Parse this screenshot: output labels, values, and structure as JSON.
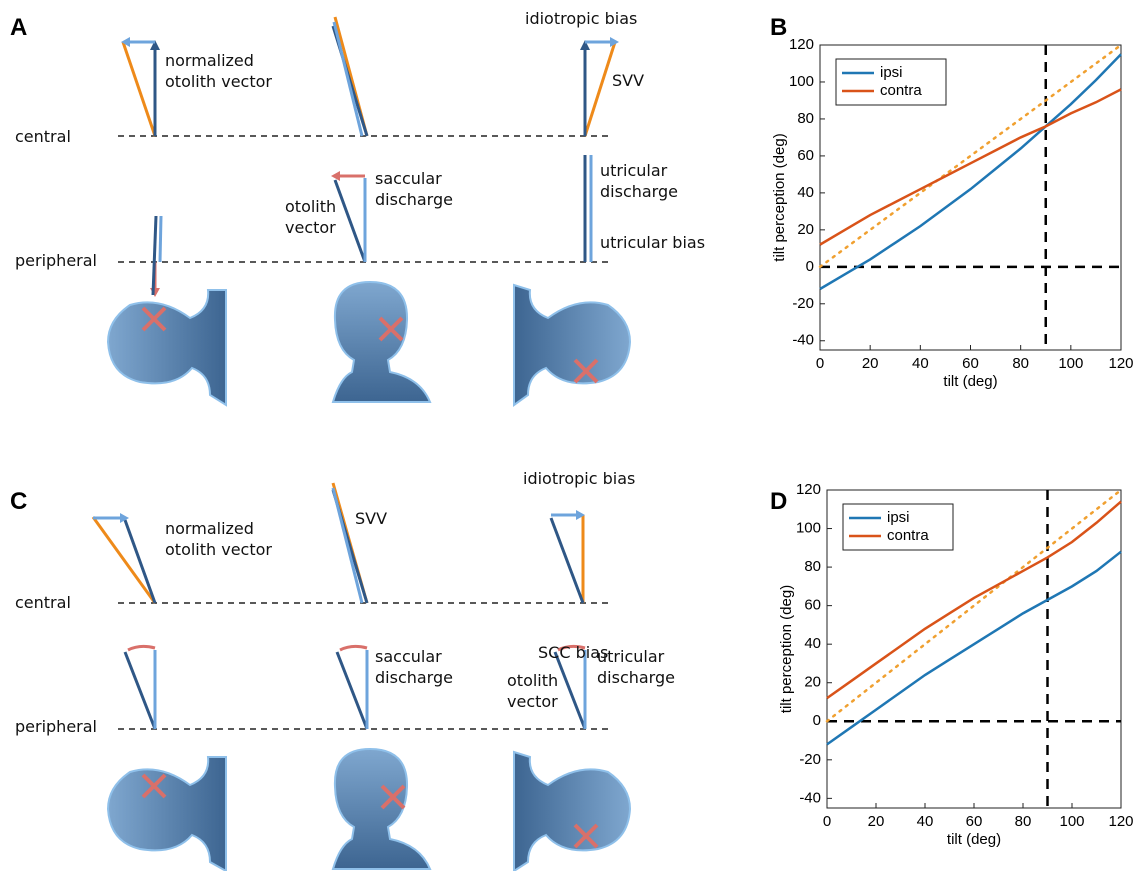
{
  "panel_labels": [
    "A",
    "B",
    "C",
    "D"
  ],
  "diagrams": [
    {
      "labels": [
        "central",
        "peripheral",
        "normalized\notolith vector",
        "idiotropic bias",
        "SVV",
        "saccular\ndischarge",
        "otolith\nvector",
        "utricular\ndischarge",
        "utricular bias"
      ]
    },
    {
      "labels": [
        "central",
        "peripheral",
        "normalized\notolith vector",
        "SVV",
        "idiotropic bias",
        "saccular\ndischarge",
        "SCC bias",
        "utricular\ndischarge",
        "otolith\nvector"
      ]
    }
  ],
  "chart_data": [
    {
      "type": "line",
      "xlabel": "tilt (deg)",
      "ylabel": "tilt perception (deg)",
      "x": [
        0,
        10,
        20,
        30,
        40,
        50,
        60,
        70,
        80,
        90,
        100,
        110,
        120
      ],
      "series": [
        {
          "name": "ipsi",
          "color": "#1f77b4",
          "values": [
            -12,
            -4,
            4,
            13,
            22,
            32,
            42,
            53,
            64,
            76,
            88,
            101,
            115
          ]
        },
        {
          "name": "contra",
          "color": "#d95319",
          "values": [
            12,
            20,
            28,
            35,
            42,
            49,
            56,
            63,
            70,
            76,
            83,
            89,
            96
          ]
        }
      ],
      "identity_line": {
        "color": "#f0a030",
        "x": [
          0,
          120
        ],
        "values": [
          0,
          120
        ]
      },
      "vlines": [
        90
      ],
      "hlines": [
        0
      ],
      "xlim": [
        0,
        120
      ],
      "xticks": [
        0,
        20,
        40,
        60,
        80,
        100,
        120
      ],
      "ylim": [
        -45,
        120
      ],
      "yticks": [
        -40,
        -20,
        0,
        20,
        40,
        60,
        80,
        100,
        120
      ],
      "legend": "upper left"
    },
    {
      "type": "line",
      "xlabel": "tilt (deg)",
      "ylabel": "tilt perception (deg)",
      "x": [
        0,
        10,
        20,
        30,
        40,
        50,
        60,
        70,
        80,
        90,
        100,
        110,
        120
      ],
      "series": [
        {
          "name": "ipsi",
          "color": "#1f77b4",
          "values": [
            -12,
            -3,
            6,
            15,
            24,
            32,
            40,
            48,
            56,
            63,
            70,
            78,
            88
          ]
        },
        {
          "name": "contra",
          "color": "#d95319",
          "values": [
            12,
            21,
            30,
            39,
            48,
            56,
            64,
            71,
            78,
            85,
            93,
            103,
            114
          ]
        }
      ],
      "identity_line": {
        "color": "#f0a030",
        "x": [
          0,
          120
        ],
        "values": [
          0,
          120
        ]
      },
      "vlines": [
        90
      ],
      "hlines": [
        0
      ],
      "xlim": [
        0,
        120
      ],
      "xticks": [
        0,
        20,
        40,
        60,
        80,
        100,
        120
      ],
      "ylim": [
        -45,
        120
      ],
      "yticks": [
        -40,
        -20,
        0,
        20,
        40,
        60,
        80,
        100,
        120
      ],
      "legend": "upper left"
    }
  ]
}
